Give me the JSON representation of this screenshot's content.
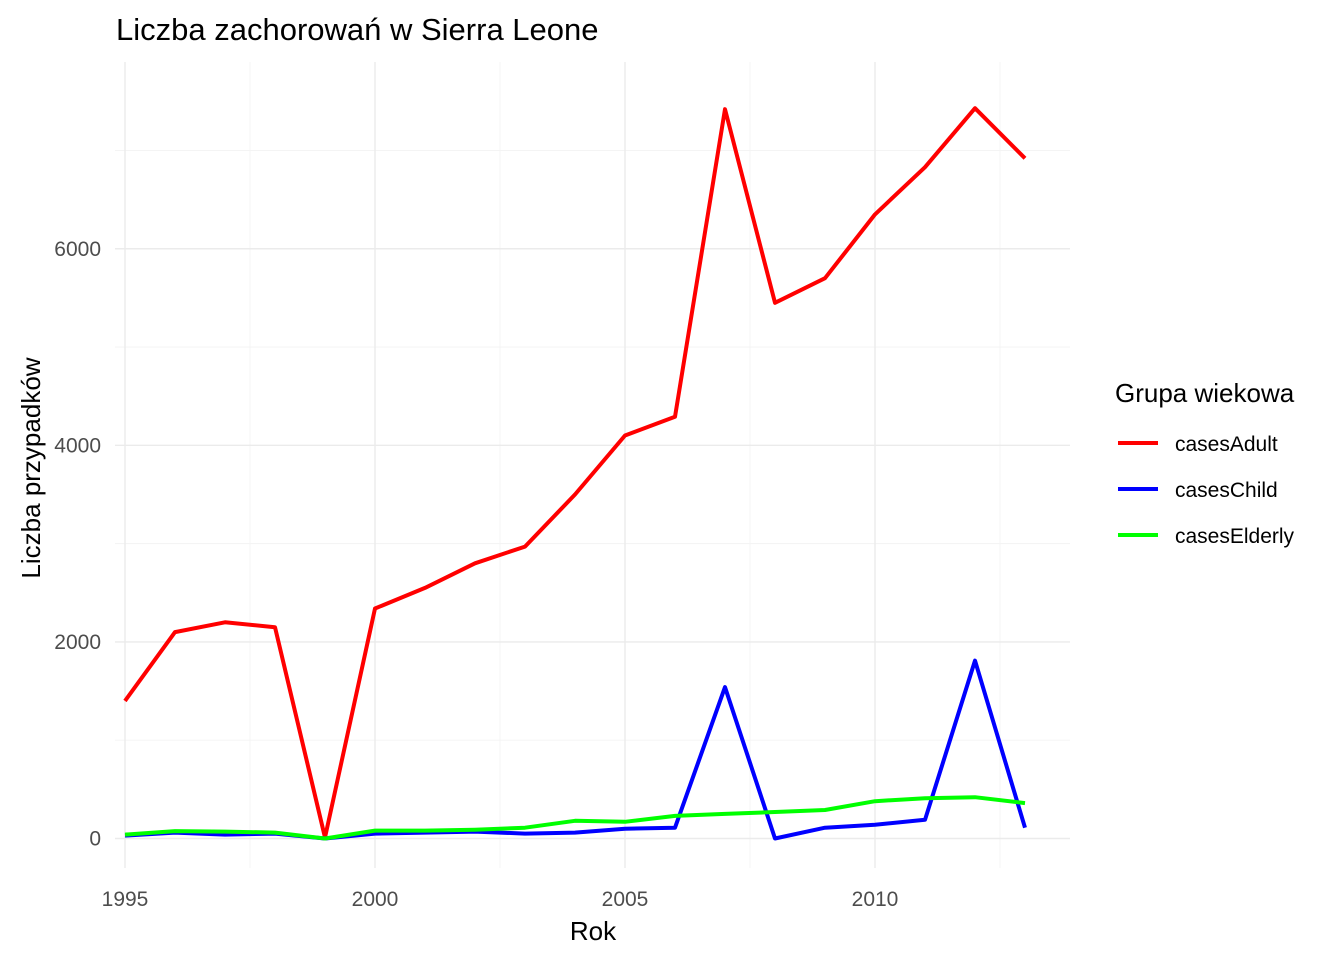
{
  "chart_data": {
    "type": "line",
    "title": "Liczba zachorowań w Sierra Leone",
    "xlabel": "Rok",
    "ylabel": "Liczba przypadków",
    "xlim": [
      1994.8,
      2013.9
    ],
    "ylim": [
      -300,
      7900
    ],
    "x_ticks": [
      1995,
      2000,
      2005,
      2010
    ],
    "y_ticks": [
      0,
      2000,
      4000,
      6000
    ],
    "x_minor": [
      1997.5,
      2002.5,
      2007.5,
      2012.5
    ],
    "y_minor": [
      1000,
      3000,
      5000,
      7000
    ],
    "grid": true,
    "legend": {
      "title": "Grupa wiekowa",
      "position": "right"
    },
    "x": [
      1995,
      1996,
      1997,
      1998,
      1999,
      2000,
      2001,
      2002,
      2003,
      2004,
      2005,
      2006,
      2007,
      2008,
      2009,
      2010,
      2011,
      2012,
      2013
    ],
    "series": [
      {
        "name": "casesAdult",
        "color": "#ff0000",
        "values": [
          1400,
          2100,
          2200,
          2150,
          10,
          2340,
          2550,
          2800,
          2970,
          3500,
          4100,
          4290,
          7420,
          5450,
          5700,
          6350,
          6830,
          7430,
          6920
        ]
      },
      {
        "name": "casesChild",
        "color": "#0000ff",
        "values": [
          30,
          60,
          40,
          50,
          0,
          50,
          60,
          70,
          50,
          60,
          100,
          110,
          1540,
          0,
          110,
          140,
          190,
          1810,
          110
        ]
      },
      {
        "name": "casesElderly",
        "color": "#00ff00",
        "values": [
          40,
          75,
          70,
          60,
          0,
          80,
          80,
          90,
          110,
          180,
          170,
          230,
          250,
          270,
          290,
          380,
          410,
          420,
          360
        ]
      }
    ]
  }
}
